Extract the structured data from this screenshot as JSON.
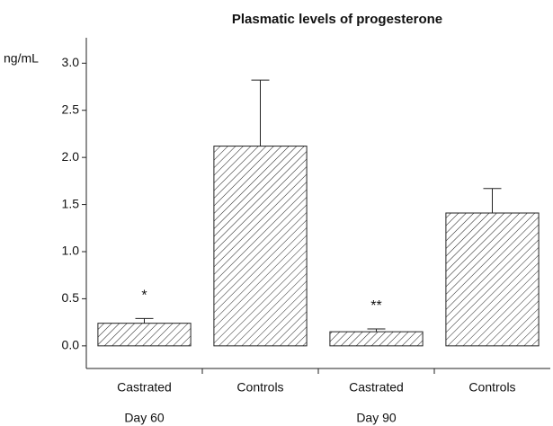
{
  "chart_data": {
    "type": "bar",
    "title": "Plasmatic levels of progesterone",
    "y_label": "ng/mL",
    "categories": [
      "Castrated",
      "Controls",
      "Castrated",
      "Controls"
    ],
    "values": [
      0.24,
      2.12,
      0.15,
      1.41
    ],
    "errors": [
      0.05,
      0.7,
      0.03,
      0.26
    ],
    "annotations": [
      "*",
      null,
      "**",
      null
    ],
    "groups": [
      "Day 60",
      "Day 90"
    ],
    "color": "#222222",
    "ylim": [
      -0.24,
      3.27
    ],
    "yticks": [
      {
        "value": 0,
        "label": "0.0"
      },
      0.5,
      {
        "value": 1,
        "label": "1.0"
      },
      1.5,
      {
        "value": 2,
        "label": "2.0"
      },
      2.5,
      {
        "value": 3,
        "label": "3.0"
      }
    ]
  }
}
